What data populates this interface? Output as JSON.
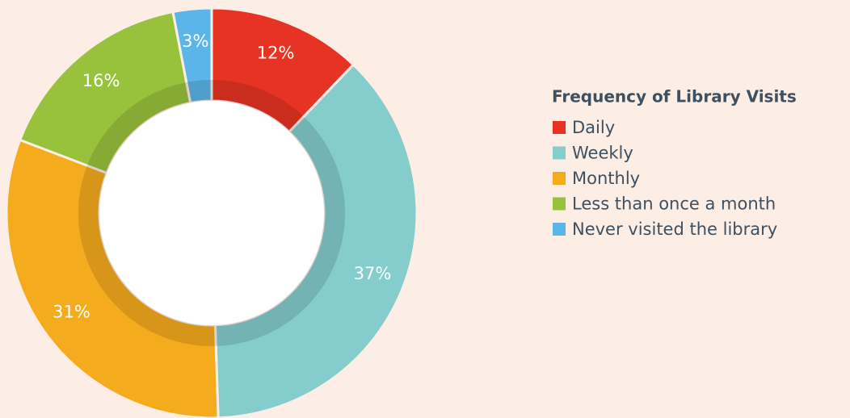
{
  "chart_data": {
    "type": "pie",
    "legend_title": "Frequency of Library Visits",
    "categories": [
      "Daily",
      "Weekly",
      "Monthly",
      "Less than once a month",
      "Never visited the library"
    ],
    "values": [
      12,
      37,
      31,
      16,
      3
    ],
    "value_labels": [
      "12%",
      "37%",
      "31%",
      "16%",
      "3%"
    ],
    "colors": [
      "#e63323",
      "#85cccc",
      "#f5ab1e",
      "#99c23c",
      "#5bb5e8"
    ],
    "legend": "right"
  }
}
